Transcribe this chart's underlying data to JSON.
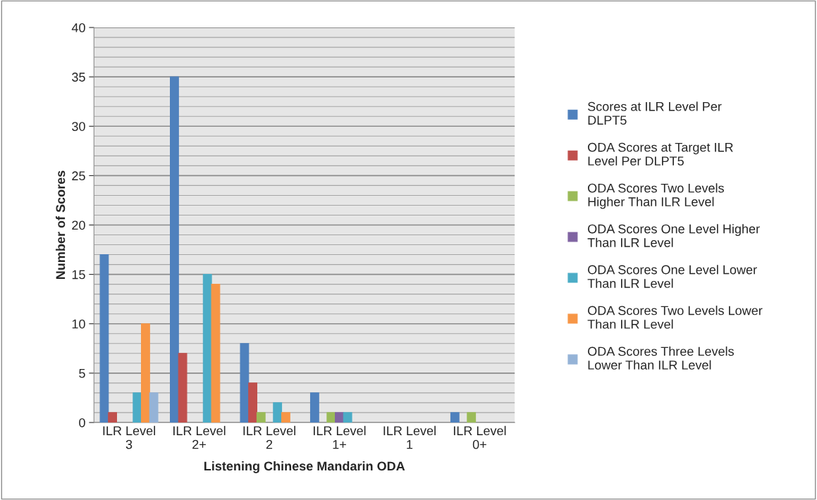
{
  "chart_data": {
    "type": "bar",
    "xlabel": "Listening Chinese Mandarin ODA",
    "ylabel": "Number of Scores",
    "categories": [
      "ILR Level\n3",
      "ILR Level\n2+",
      "ILR Level\n2",
      "ILR Level\n1+",
      "ILR Level\n1",
      "ILR Level\n0+"
    ],
    "series": [
      {
        "name": "Scores at ILR Level Per DLPT5",
        "color": "#4f81bd",
        "values": [
          17,
          35,
          8,
          3,
          null,
          1
        ]
      },
      {
        "name": "ODA Scores at Target ILR Level Per DLPT5",
        "color": "#c0504d",
        "values": [
          1,
          7,
          4,
          null,
          null,
          null
        ]
      },
      {
        "name": "ODA Scores Two Levels Higher Than ILR Level",
        "color": "#9bbb59",
        "values": [
          null,
          null,
          1,
          1,
          null,
          1
        ]
      },
      {
        "name": "ODA Scores One Level Higher Than ILR Level",
        "color": "#8064a2",
        "values": [
          null,
          null,
          null,
          1,
          null,
          null
        ]
      },
      {
        "name": "ODA Scores One Level Lower Than ILR Level",
        "color": "#4bacc6",
        "values": [
          3,
          15,
          2,
          1,
          null,
          null
        ]
      },
      {
        "name": "ODA Scores Two Levels Lower Than ILR Level",
        "color": "#f79646",
        "values": [
          10,
          14,
          1,
          null,
          null,
          null
        ]
      },
      {
        "name": "ODA Scores Three Levels Lower Than ILR Level",
        "color": "#95b3d7",
        "values": [
          3,
          null,
          null,
          null,
          null,
          null
        ]
      }
    ],
    "ylim": [
      0,
      40
    ],
    "yticks": [
      0,
      5,
      10,
      15,
      20,
      25,
      30,
      35,
      40
    ],
    "grid": "y",
    "legend": "right"
  }
}
